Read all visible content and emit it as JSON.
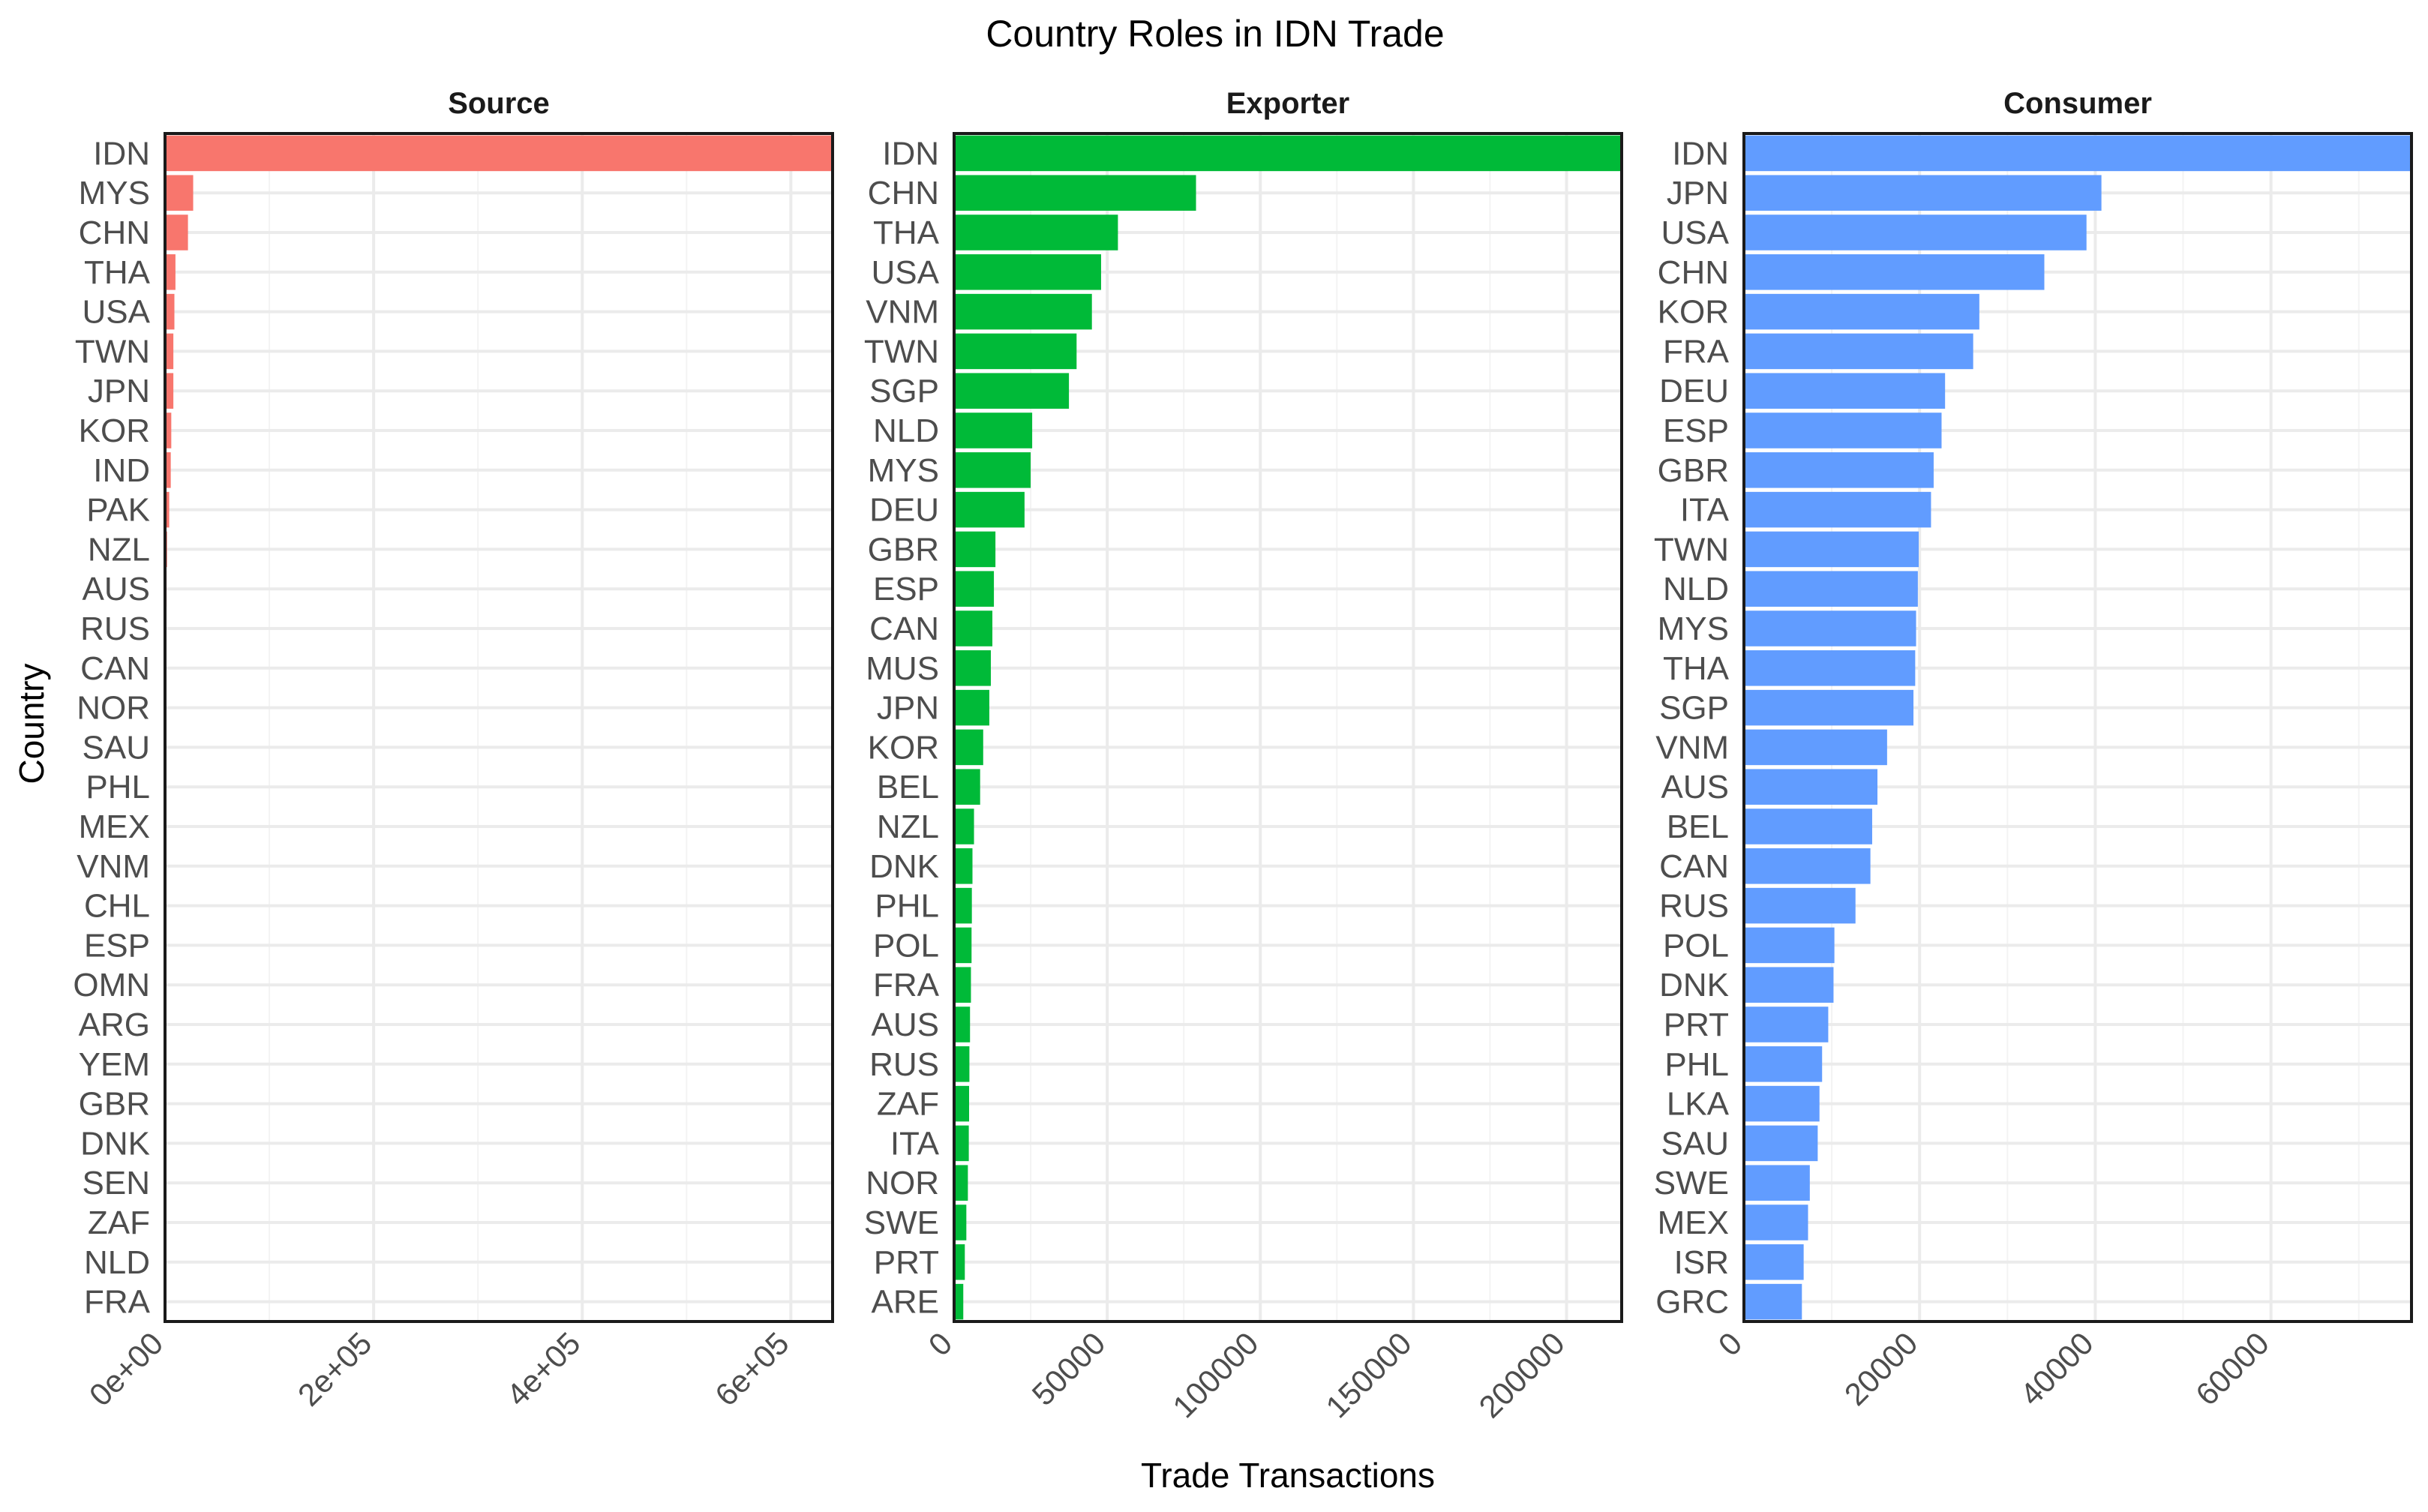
{
  "chart_data": {
    "type": "bar",
    "orientation": "horizontal",
    "layout": "facets",
    "title": "Country Roles in IDN Trade",
    "xlabel": "Trade Transactions",
    "ylabel": "Country",
    "grid": true,
    "facets": [
      {
        "name": "Source",
        "color": "#F8766D",
        "xlim": [
          0,
          640000
        ],
        "xticks": [
          0,
          200000,
          400000,
          600000
        ],
        "xtick_labels": [
          "0e+00",
          "2e+05",
          "4e+05",
          "6e+05"
        ],
        "categories": [
          "IDN",
          "MYS",
          "CHN",
          "THA",
          "USA",
          "TWN",
          "JPN",
          "KOR",
          "IND",
          "PAK",
          "NZL",
          "AUS",
          "RUS",
          "CAN",
          "NOR",
          "SAU",
          "PHL",
          "MEX",
          "VNM",
          "CHL",
          "ESP",
          "OMN",
          "ARG",
          "YEM",
          "GBR",
          "DNK",
          "SEN",
          "ZAF",
          "NLD",
          "FRA"
        ],
        "values": [
          640000,
          27000,
          22000,
          10000,
          9000,
          8000,
          8000,
          6000,
          5500,
          4000,
          2000,
          1500,
          800,
          700,
          600,
          500,
          400,
          350,
          300,
          250,
          200,
          180,
          160,
          140,
          120,
          100,
          90,
          80,
          70,
          60
        ]
      },
      {
        "name": "Exporter",
        "color": "#00BA38",
        "xlim": [
          0,
          218000
        ],
        "xticks": [
          0,
          50000,
          100000,
          150000,
          200000
        ],
        "xtick_labels": [
          "0",
          "50000",
          "100000",
          "150000",
          "200000"
        ],
        "categories": [
          "IDN",
          "CHN",
          "THA",
          "USA",
          "VNM",
          "TWN",
          "SGP",
          "NLD",
          "MYS",
          "DEU",
          "GBR",
          "ESP",
          "CAN",
          "MUS",
          "JPN",
          "KOR",
          "BEL",
          "NZL",
          "DNK",
          "PHL",
          "POL",
          "FRA",
          "AUS",
          "RUS",
          "ZAF",
          "ITA",
          "NOR",
          "SWE",
          "PRT",
          "ARE"
        ],
        "values": [
          218000,
          79000,
          53500,
          48000,
          45000,
          40000,
          37500,
          25500,
          25000,
          23000,
          13500,
          13000,
          12500,
          12000,
          11500,
          9500,
          8500,
          6500,
          6000,
          5800,
          5700,
          5500,
          5200,
          5000,
          4900,
          4800,
          4500,
          4000,
          3500,
          3000
        ]
      },
      {
        "name": "Consumer",
        "color": "#619CFF",
        "xlim": [
          0,
          76000
        ],
        "xticks": [
          0,
          20000,
          40000,
          60000
        ],
        "xtick_labels": [
          "0",
          "20000",
          "40000",
          "60000"
        ],
        "categories": [
          "IDN",
          "JPN",
          "USA",
          "CHN",
          "KOR",
          "FRA",
          "DEU",
          "ESP",
          "GBR",
          "ITA",
          "TWN",
          "NLD",
          "MYS",
          "THA",
          "SGP",
          "VNM",
          "AUS",
          "BEL",
          "CAN",
          "RUS",
          "POL",
          "DNK",
          "PRT",
          "PHL",
          "LKA",
          "SAU",
          "SWE",
          "MEX",
          "ISR",
          "GRC"
        ],
        "values": [
          76000,
          40700,
          39000,
          34200,
          26800,
          26100,
          22900,
          22500,
          21600,
          21300,
          19900,
          19800,
          19600,
          19500,
          19300,
          16300,
          15200,
          14600,
          14400,
          12700,
          10300,
          10200,
          9600,
          8900,
          8600,
          8400,
          7500,
          7300,
          6800,
          6600
        ]
      }
    ]
  }
}
